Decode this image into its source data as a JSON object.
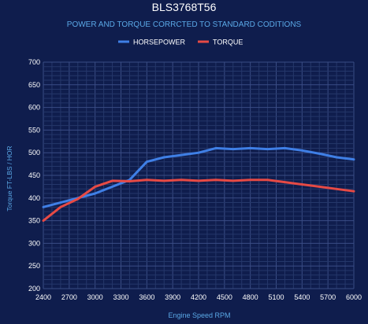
{
  "chart_data": {
    "type": "line",
    "title": "BLS3768T56",
    "subtitle": "POWER AND TORQUE CORRCTED TO STANDARD CODITIONS",
    "xlabel": "Engine Speed RPM",
    "ylabel": "Torque FT-LBS / HOR",
    "x_ticks": [
      "2400",
      "2700",
      "3000",
      "3300",
      "3600",
      "3900",
      "4200",
      "4500",
      "4800",
      "5100",
      "5400",
      "5700",
      "6000"
    ],
    "y_ticks": [
      "200",
      "250",
      "300",
      "350",
      "400",
      "450",
      "500",
      "550",
      "600",
      "650",
      "700"
    ],
    "xlim": [
      2400,
      6000
    ],
    "ylim": [
      200,
      700
    ],
    "grid": true,
    "legend_position": "top",
    "series": [
      {
        "name": "HORSEPOWER",
        "color": "#3f7fe6",
        "x": [
          2400,
          2600,
          2800,
          3000,
          3200,
          3400,
          3600,
          3800,
          4000,
          4200,
          4400,
          4600,
          4800,
          5000,
          5200,
          5400,
          5600,
          5800,
          6000
        ],
        "values": [
          380,
          390,
          400,
          410,
          425,
          440,
          480,
          490,
          495,
          500,
          510,
          508,
          510,
          508,
          510,
          505,
          498,
          490,
          485
        ]
      },
      {
        "name": "TORQUE",
        "color": "#e64a45",
        "x": [
          2400,
          2600,
          2800,
          3000,
          3200,
          3400,
          3600,
          3800,
          4000,
          4200,
          4400,
          4600,
          4800,
          5000,
          5200,
          5400,
          5600,
          5800,
          6000
        ],
        "values": [
          350,
          380,
          398,
          425,
          438,
          437,
          440,
          438,
          440,
          438,
          440,
          438,
          440,
          440,
          435,
          430,
          425,
          420,
          415
        ]
      }
    ]
  }
}
